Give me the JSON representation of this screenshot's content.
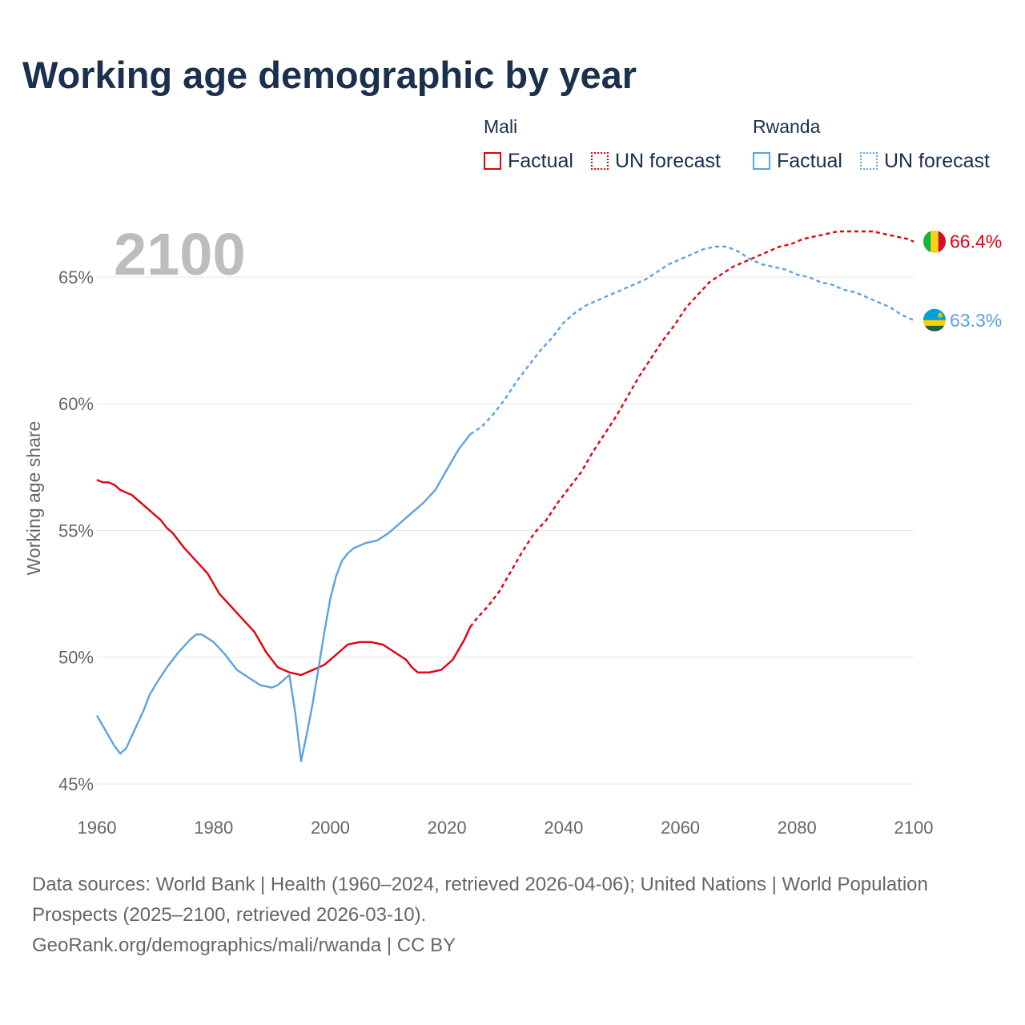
{
  "title": "Working age demographic by year",
  "current_year_label": "2100",
  "legend": {
    "groups": [
      {
        "name": "Mali",
        "color": "#e3000f",
        "factual_label": "Factual",
        "forecast_label": "UN forecast"
      },
      {
        "name": "Rwanda",
        "color": "#5ba3e0",
        "factual_label": "Factual",
        "forecast_label": "UN forecast"
      }
    ]
  },
  "chart_data": {
    "type": "line",
    "title": "Working age demographic by year",
    "xlabel": "",
    "ylabel": "Working age share",
    "xlim": [
      1960,
      2100
    ],
    "ylim": [
      45,
      67
    ],
    "x_ticks": [
      "1960",
      "1980",
      "2000",
      "2020",
      "2040",
      "2060",
      "2080",
      "2100"
    ],
    "y_ticks": [
      "45%",
      "50%",
      "55%",
      "60%",
      "65%"
    ],
    "grid": true,
    "factual_range": [
      1960,
      2024
    ],
    "forecast_range": [
      2024,
      2100
    ],
    "series": [
      {
        "name": "Mali",
        "color": "#e3000f",
        "end_label": "66.4%",
        "flag": "mali-flag",
        "points": [
          [
            1960,
            57.0
          ],
          [
            1961,
            56.9
          ],
          [
            1962,
            56.9
          ],
          [
            1963,
            56.8
          ],
          [
            1964,
            56.6
          ],
          [
            1966,
            56.4
          ],
          [
            1968,
            56.0
          ],
          [
            1970,
            55.6
          ],
          [
            1971,
            55.4
          ],
          [
            1972,
            55.1
          ],
          [
            1973,
            54.9
          ],
          [
            1975,
            54.3
          ],
          [
            1977,
            53.8
          ],
          [
            1979,
            53.3
          ],
          [
            1981,
            52.5
          ],
          [
            1983,
            52.0
          ],
          [
            1985,
            51.5
          ],
          [
            1987,
            51.0
          ],
          [
            1989,
            50.2
          ],
          [
            1991,
            49.6
          ],
          [
            1993,
            49.4
          ],
          [
            1995,
            49.3
          ],
          [
            1997,
            49.5
          ],
          [
            1999,
            49.7
          ],
          [
            2001,
            50.1
          ],
          [
            2003,
            50.5
          ],
          [
            2005,
            50.6
          ],
          [
            2007,
            50.6
          ],
          [
            2009,
            50.5
          ],
          [
            2011,
            50.2
          ],
          [
            2013,
            49.9
          ],
          [
            2014,
            49.6
          ],
          [
            2015,
            49.4
          ],
          [
            2017,
            49.4
          ],
          [
            2019,
            49.5
          ],
          [
            2021,
            49.9
          ],
          [
            2023,
            50.7
          ],
          [
            2024,
            51.2
          ],
          [
            2025,
            51.5
          ],
          [
            2027,
            52.0
          ],
          [
            2029,
            52.6
          ],
          [
            2031,
            53.4
          ],
          [
            2033,
            54.2
          ],
          [
            2035,
            54.9
          ],
          [
            2037,
            55.4
          ],
          [
            2039,
            56.1
          ],
          [
            2041,
            56.7
          ],
          [
            2043,
            57.3
          ],
          [
            2045,
            58.1
          ],
          [
            2047,
            58.8
          ],
          [
            2049,
            59.5
          ],
          [
            2051,
            60.3
          ],
          [
            2053,
            61.1
          ],
          [
            2055,
            61.8
          ],
          [
            2057,
            62.5
          ],
          [
            2059,
            63.1
          ],
          [
            2061,
            63.8
          ],
          [
            2063,
            64.3
          ],
          [
            2065,
            64.8
          ],
          [
            2067,
            65.1
          ],
          [
            2069,
            65.4
          ],
          [
            2071,
            65.6
          ],
          [
            2073,
            65.8
          ],
          [
            2075,
            66.0
          ],
          [
            2077,
            66.2
          ],
          [
            2079,
            66.3
          ],
          [
            2081,
            66.5
          ],
          [
            2083,
            66.6
          ],
          [
            2085,
            66.7
          ],
          [
            2087,
            66.8
          ],
          [
            2089,
            66.8
          ],
          [
            2091,
            66.8
          ],
          [
            2093,
            66.8
          ],
          [
            2095,
            66.7
          ],
          [
            2097,
            66.6
          ],
          [
            2099,
            66.5
          ],
          [
            2100,
            66.4
          ]
        ]
      },
      {
        "name": "Rwanda",
        "color": "#5ba3e0",
        "end_label": "63.3%",
        "flag": "rwanda-flag",
        "points": [
          [
            1960,
            47.7
          ],
          [
            1961,
            47.3
          ],
          [
            1962,
            46.9
          ],
          [
            1963,
            46.5
          ],
          [
            1964,
            46.2
          ],
          [
            1965,
            46.4
          ],
          [
            1966,
            46.9
          ],
          [
            1967,
            47.4
          ],
          [
            1968,
            47.9
          ],
          [
            1969,
            48.5
          ],
          [
            1970,
            48.9
          ],
          [
            1972,
            49.6
          ],
          [
            1974,
            50.2
          ],
          [
            1976,
            50.7
          ],
          [
            1977,
            50.9
          ],
          [
            1978,
            50.9
          ],
          [
            1980,
            50.6
          ],
          [
            1982,
            50.1
          ],
          [
            1984,
            49.5
          ],
          [
            1986,
            49.2
          ],
          [
            1988,
            48.9
          ],
          [
            1990,
            48.8
          ],
          [
            1991,
            48.9
          ],
          [
            1992,
            49.1
          ],
          [
            1993,
            49.3
          ],
          [
            1994,
            47.8
          ],
          [
            1995,
            45.9
          ],
          [
            1996,
            47.0
          ],
          [
            1997,
            48.2
          ],
          [
            1998,
            49.6
          ],
          [
            1999,
            51.0
          ],
          [
            2000,
            52.3
          ],
          [
            2001,
            53.2
          ],
          [
            2002,
            53.8
          ],
          [
            2003,
            54.1
          ],
          [
            2004,
            54.3
          ],
          [
            2006,
            54.5
          ],
          [
            2008,
            54.6
          ],
          [
            2010,
            54.9
          ],
          [
            2012,
            55.3
          ],
          [
            2014,
            55.7
          ],
          [
            2016,
            56.1
          ],
          [
            2018,
            56.6
          ],
          [
            2020,
            57.4
          ],
          [
            2022,
            58.2
          ],
          [
            2024,
            58.8
          ],
          [
            2026,
            59.1
          ],
          [
            2028,
            59.6
          ],
          [
            2030,
            60.2
          ],
          [
            2032,
            60.9
          ],
          [
            2034,
            61.5
          ],
          [
            2036,
            62.1
          ],
          [
            2038,
            62.6
          ],
          [
            2040,
            63.2
          ],
          [
            2042,
            63.6
          ],
          [
            2044,
            63.9
          ],
          [
            2046,
            64.1
          ],
          [
            2048,
            64.3
          ],
          [
            2050,
            64.5
          ],
          [
            2052,
            64.7
          ],
          [
            2054,
            64.9
          ],
          [
            2056,
            65.2
          ],
          [
            2058,
            65.5
          ],
          [
            2060,
            65.7
          ],
          [
            2062,
            65.9
          ],
          [
            2064,
            66.1
          ],
          [
            2066,
            66.2
          ],
          [
            2068,
            66.2
          ],
          [
            2070,
            66.0
          ],
          [
            2072,
            65.7
          ],
          [
            2074,
            65.5
          ],
          [
            2076,
            65.4
          ],
          [
            2078,
            65.3
          ],
          [
            2080,
            65.1
          ],
          [
            2082,
            65.0
          ],
          [
            2084,
            64.8
          ],
          [
            2086,
            64.7
          ],
          [
            2088,
            64.5
          ],
          [
            2090,
            64.4
          ],
          [
            2092,
            64.2
          ],
          [
            2094,
            64.0
          ],
          [
            2096,
            63.8
          ],
          [
            2098,
            63.5
          ],
          [
            2100,
            63.3
          ]
        ]
      }
    ]
  },
  "footer": {
    "sources": "Data sources: World Bank | Health (1960–2024, retrieved 2026-04-06); United Nations | World Population Prospects (2025–2100, retrieved 2026-03-10).",
    "attribution": "GeoRank.org/demographics/mali/rwanda | CC BY"
  }
}
